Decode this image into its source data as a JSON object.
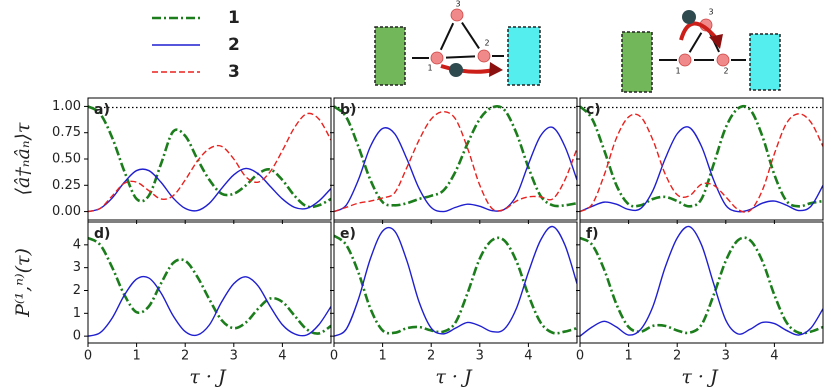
{
  "chart_data": [
    {
      "type": "line",
      "panel_label": "a)",
      "ylabel": "⟨â†ₙâₙ⟩τ",
      "xlim": [
        0,
        5
      ],
      "ylim": [
        -0.08,
        1.08
      ],
      "yticks": [
        {
          "value": 0,
          "label": "0.00"
        },
        {
          "value": 0.25,
          "label": "0.25"
        },
        {
          "value": 0.5,
          "label": "0.50"
        },
        {
          "value": 0.75,
          "label": "0.75"
        },
        {
          "value": 1,
          "label": "1.00"
        }
      ],
      "hline": 0.99,
      "x": [
        0,
        0.25,
        0.5,
        0.75,
        1,
        1.25,
        1.5,
        1.75,
        2,
        2.25,
        2.5,
        2.75,
        3,
        3.25,
        3.5,
        3.75,
        4,
        4.25,
        4.5,
        4.75,
        5
      ],
      "series": [
        {
          "name": "1",
          "color": "#1b7d1b",
          "linestyle": "dashdot",
          "values": [
            1.0,
            0.93,
            0.7,
            0.38,
            0.12,
            0.15,
            0.45,
            0.76,
            0.72,
            0.5,
            0.3,
            0.17,
            0.17,
            0.25,
            0.36,
            0.4,
            0.3,
            0.15,
            0.05,
            0.06,
            0.12
          ]
        },
        {
          "name": "2",
          "color": "#1f1fd0",
          "linestyle": "solid",
          "values": [
            0,
            0.03,
            0.13,
            0.28,
            0.39,
            0.39,
            0.28,
            0.13,
            0.03,
            0.01,
            0.08,
            0.22,
            0.35,
            0.41,
            0.36,
            0.24,
            0.12,
            0.04,
            0.03,
            0.1,
            0.22
          ]
        },
        {
          "name": "3",
          "color": "#e8221e",
          "linestyle": "dashed",
          "values": [
            0,
            0.03,
            0.15,
            0.27,
            0.28,
            0.2,
            0.12,
            0.15,
            0.3,
            0.48,
            0.6,
            0.62,
            0.5,
            0.33,
            0.28,
            0.38,
            0.58,
            0.8,
            0.93,
            0.88,
            0.68
          ]
        }
      ]
    },
    {
      "type": "line",
      "panel_label": "b)",
      "xlim": [
        0,
        5
      ],
      "ylim": [
        -0.08,
        1.08
      ],
      "hline": 0.99,
      "x": [
        0,
        0.25,
        0.5,
        0.75,
        1,
        1.25,
        1.5,
        1.75,
        2,
        2.25,
        2.5,
        2.75,
        3,
        3.25,
        3.5,
        3.75,
        4,
        4.25,
        4.5,
        4.75,
        5
      ],
      "series": [
        {
          "color": "#1b7d1b",
          "linestyle": "dashdot",
          "values": [
            1.0,
            0.9,
            0.62,
            0.3,
            0.09,
            0.06,
            0.08,
            0.12,
            0.15,
            0.2,
            0.38,
            0.65,
            0.88,
            0.99,
            0.97,
            0.75,
            0.42,
            0.15,
            0.06,
            0.06,
            0.08
          ]
        },
        {
          "color": "#1f1fd0",
          "linestyle": "solid",
          "values": [
            0,
            0.06,
            0.3,
            0.62,
            0.79,
            0.74,
            0.5,
            0.22,
            0.04,
            0.0,
            0.04,
            0.07,
            0.05,
            0.01,
            0.02,
            0.15,
            0.45,
            0.72,
            0.8,
            0.62,
            0.3
          ]
        },
        {
          "color": "#e8221e",
          "linestyle": "dashed",
          "values": [
            0,
            0.04,
            0.08,
            0.1,
            0.13,
            0.18,
            0.42,
            0.68,
            0.88,
            0.95,
            0.88,
            0.6,
            0.25,
            0.03,
            0.02,
            0.1,
            0.14,
            0.14,
            0.12,
            0.3,
            0.6
          ]
        }
      ]
    },
    {
      "type": "line",
      "panel_label": "c)",
      "xlim": [
        0,
        5
      ],
      "ylim": [
        -0.08,
        1.08
      ],
      "hline": 0.99,
      "x": [
        0,
        0.25,
        0.5,
        0.75,
        1,
        1.25,
        1.5,
        1.75,
        2,
        2.25,
        2.5,
        2.75,
        3,
        3.25,
        3.5,
        3.75,
        4,
        4.25,
        4.5,
        4.75,
        5
      ],
      "series": [
        {
          "color": "#1b7d1b",
          "linestyle": "dashdot",
          "values": [
            1.0,
            0.88,
            0.58,
            0.25,
            0.07,
            0.06,
            0.12,
            0.14,
            0.1,
            0.05,
            0.12,
            0.45,
            0.8,
            0.98,
            0.97,
            0.72,
            0.35,
            0.1,
            0.05,
            0.08,
            0.1
          ]
        },
        {
          "color": "#1f1fd0",
          "linestyle": "solid",
          "values": [
            0,
            0.05,
            0.09,
            0.07,
            0.02,
            0.03,
            0.2,
            0.5,
            0.74,
            0.8,
            0.62,
            0.3,
            0.06,
            0.0,
            0.02,
            0.08,
            0.1,
            0.06,
            0.01,
            0.05,
            0.25
          ]
        },
        {
          "color": "#e8221e",
          "linestyle": "dashed",
          "values": [
            0,
            0.07,
            0.35,
            0.7,
            0.9,
            0.9,
            0.68,
            0.36,
            0.16,
            0.15,
            0.26,
            0.25,
            0.14,
            0.02,
            0.01,
            0.2,
            0.55,
            0.84,
            0.93,
            0.85,
            0.62
          ]
        }
      ]
    },
    {
      "type": "line",
      "panel_label": "d)",
      "ylabel": "P⁽¹,ⁿ⁾(τ)",
      "xlabel": "τ · J",
      "xlim": [
        0,
        5
      ],
      "ylim": [
        -0.3,
        5
      ],
      "yticks": [
        0,
        1,
        2,
        3,
        4
      ],
      "xticks": [
        0,
        1,
        2,
        3,
        4
      ],
      "x": [
        0,
        0.25,
        0.5,
        0.75,
        1,
        1.25,
        1.5,
        1.75,
        2,
        2.25,
        2.5,
        2.75,
        3,
        3.25,
        3.5,
        3.75,
        4,
        4.25,
        4.5,
        4.75,
        5
      ],
      "series": [
        {
          "color": "#1b7d1b",
          "linestyle": "dashdot",
          "values": [
            4.3,
            4.0,
            3.0,
            1.8,
            1.05,
            1.3,
            2.3,
            3.2,
            3.3,
            2.6,
            1.6,
            0.7,
            0.35,
            0.6,
            1.2,
            1.65,
            1.5,
            0.9,
            0.3,
            0.12,
            0.45
          ]
        },
        {
          "color": "#1f1fd0",
          "linestyle": "solid",
          "values": [
            0,
            0.15,
            0.8,
            1.8,
            2.5,
            2.55,
            1.9,
            0.9,
            0.2,
            0.05,
            0.5,
            1.5,
            2.3,
            2.6,
            2.2,
            1.3,
            0.5,
            0.1,
            0.05,
            0.5,
            1.3
          ]
        }
      ]
    },
    {
      "type": "line",
      "panel_label": "e)",
      "xlabel": "τ · J",
      "xlim": [
        0,
        5
      ],
      "ylim": [
        -0.3,
        5
      ],
      "xticks": [
        0,
        1,
        2,
        3,
        4
      ],
      "x": [
        0,
        0.25,
        0.5,
        0.75,
        1,
        1.25,
        1.5,
        1.75,
        2,
        2.25,
        2.5,
        2.75,
        3,
        3.25,
        3.5,
        3.75,
        4,
        4.25,
        4.5,
        4.75,
        5
      ],
      "series": [
        {
          "color": "#1b7d1b",
          "linestyle": "dashdot",
          "values": [
            4.4,
            4.0,
            2.8,
            1.2,
            0.25,
            0.15,
            0.35,
            0.4,
            0.25,
            0.2,
            0.6,
            1.9,
            3.4,
            4.2,
            4.2,
            3.3,
            1.8,
            0.6,
            0.15,
            0.2,
            0.35
          ]
        },
        {
          "color": "#1f1fd0",
          "linestyle": "solid",
          "values": [
            0,
            0.3,
            1.6,
            3.4,
            4.6,
            4.6,
            3.3,
            1.5,
            0.35,
            0.1,
            0.35,
            0.6,
            0.45,
            0.2,
            0.3,
            1.2,
            2.8,
            4.2,
            4.8,
            4.0,
            2.3
          ]
        }
      ]
    },
    {
      "type": "line",
      "panel_label": "f)",
      "xlabel": "τ · J",
      "xlim": [
        0,
        5
      ],
      "ylim": [
        -0.3,
        5
      ],
      "xticks": [
        0,
        1,
        2,
        3,
        4
      ],
      "x": [
        0,
        0.25,
        0.5,
        0.75,
        1,
        1.25,
        1.5,
        1.75,
        2,
        2.25,
        2.5,
        2.75,
        3,
        3.25,
        3.5,
        3.75,
        4,
        4.25,
        4.5,
        4.75,
        5
      ],
      "series": [
        {
          "color": "#1b7d1b",
          "linestyle": "dashdot",
          "values": [
            4.3,
            4.0,
            2.9,
            1.4,
            0.4,
            0.2,
            0.45,
            0.45,
            0.25,
            0.15,
            0.5,
            1.8,
            3.3,
            4.2,
            4.2,
            3.3,
            1.8,
            0.6,
            0.15,
            0.2,
            0.4
          ]
        },
        {
          "color": "#1f1fd0",
          "linestyle": "solid",
          "values": [
            0,
            0.4,
            0.65,
            0.4,
            0.05,
            0.3,
            1.3,
            3.0,
            4.3,
            4.8,
            4.0,
            2.3,
            0.7,
            0.1,
            0.3,
            0.6,
            0.55,
            0.25,
            0.05,
            0.35,
            1.2
          ]
        }
      ]
    }
  ],
  "diagrams": [
    {
      "nodes": [
        "1",
        "2",
        "3"
      ]
    },
    {
      "nodes": [
        "1",
        "2",
        "3"
      ]
    }
  ]
}
